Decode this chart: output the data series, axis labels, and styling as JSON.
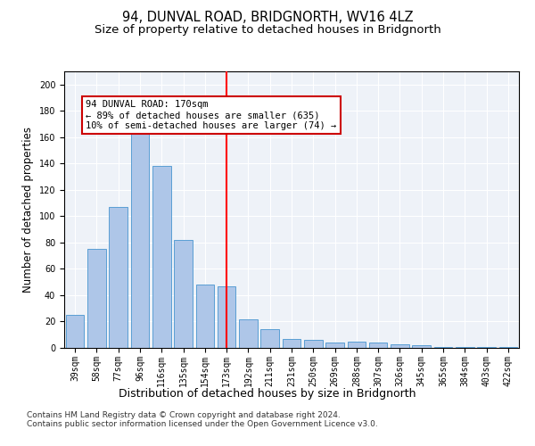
{
  "title": "94, DUNVAL ROAD, BRIDGNORTH, WV16 4LZ",
  "subtitle": "Size of property relative to detached houses in Bridgnorth",
  "xlabel": "Distribution of detached houses by size in Bridgnorth",
  "ylabel": "Number of detached properties",
  "categories": [
    "39sqm",
    "58sqm",
    "77sqm",
    "96sqm",
    "116sqm",
    "135sqm",
    "154sqm",
    "173sqm",
    "192sqm",
    "211sqm",
    "231sqm",
    "250sqm",
    "269sqm",
    "288sqm",
    "307sqm",
    "326sqm",
    "345sqm",
    "365sqm",
    "384sqm",
    "403sqm",
    "422sqm"
  ],
  "values": [
    25,
    75,
    107,
    165,
    138,
    82,
    48,
    47,
    22,
    14,
    7,
    6,
    4,
    5,
    4,
    3,
    2,
    1,
    1,
    1,
    1
  ],
  "bar_color": "#aec6e8",
  "bar_edge_color": "#5a9fd4",
  "highlight_index": 7,
  "annotation_text": "94 DUNVAL ROAD: 170sqm\n← 89% of detached houses are smaller (635)\n10% of semi-detached houses are larger (74) →",
  "annotation_box_color": "#ffffff",
  "annotation_box_edge_color": "#cc0000",
  "ylim": [
    0,
    210
  ],
  "yticks": [
    0,
    20,
    40,
    60,
    80,
    100,
    120,
    140,
    160,
    180,
    200
  ],
  "background_color": "#eef2f8",
  "footer_text": "Contains HM Land Registry data © Crown copyright and database right 2024.\nContains public sector information licensed under the Open Government Licence v3.0.",
  "title_fontsize": 10.5,
  "subtitle_fontsize": 9.5,
  "xlabel_fontsize": 9,
  "ylabel_fontsize": 8.5,
  "tick_fontsize": 7,
  "annotation_fontsize": 7.5,
  "footer_fontsize": 6.5
}
